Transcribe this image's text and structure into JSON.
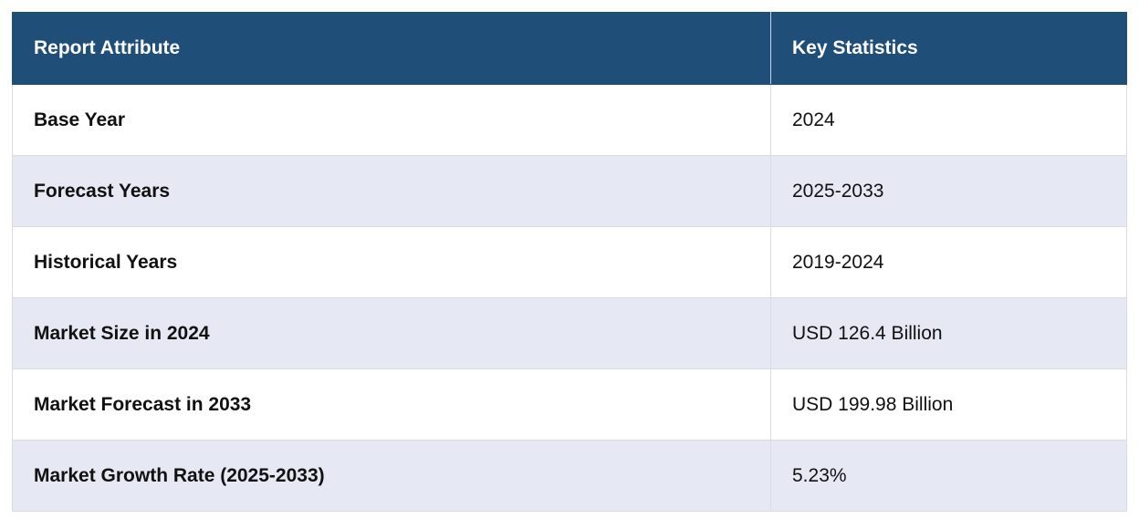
{
  "table": {
    "headers": {
      "attribute": "Report Attribute",
      "statistics": "Key Statistics"
    },
    "rows": [
      {
        "attribute": "Base Year",
        "value": "2024"
      },
      {
        "attribute": "Forecast Years",
        "value": "2025-2033"
      },
      {
        "attribute": "Historical Years",
        "value": "2019-2024"
      },
      {
        "attribute": "Market Size in 2024",
        "value": "USD 126.4 Billion"
      },
      {
        "attribute": "Market Forecast in 2033",
        "value": "USD 199.98 Billion"
      },
      {
        "attribute": "Market Growth Rate (2025-2033)",
        "value": "5.23%"
      }
    ]
  },
  "colors": {
    "header_bg": "#1f4e79",
    "header_text": "#ffffff",
    "row_alt_bg": "#e6e8f4",
    "row_bg": "#ffffff"
  }
}
